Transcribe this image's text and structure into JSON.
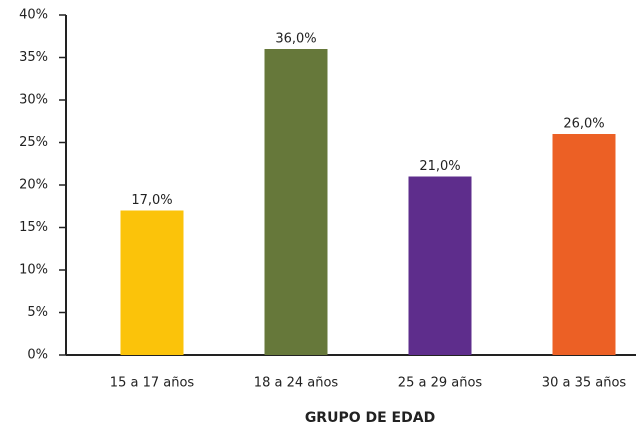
{
  "chart_data": {
    "type": "bar",
    "x_label": "GRUPO DE EDAD",
    "categories": [
      "15 a 17 años",
      "18 a 24 años",
      "25 a 29 años",
      "30 a 35 años"
    ],
    "values": [
      17,
      36,
      21,
      26
    ],
    "value_labels": [
      "17,0%",
      "36,0%",
      "21,0%",
      "26,0%"
    ],
    "colors": [
      "#fbc30a",
      "#66783a",
      "#5e2d8c",
      "#ec6025"
    ],
    "ylim": [
      0,
      40
    ],
    "yticks": [
      {
        "value": 0,
        "label": "0%"
      },
      {
        "value": 5,
        "label": "5%"
      },
      {
        "value": 10,
        "label": "10%"
      },
      {
        "value": 15,
        "label": "15%"
      },
      {
        "value": 20,
        "label": "20%"
      },
      {
        "value": 25,
        "label": "25%"
      },
      {
        "value": 30,
        "label": "30%"
      },
      {
        "value": 35,
        "label": "35%"
      },
      {
        "value": 40,
        "label": "40%"
      }
    ],
    "grid": false
  }
}
